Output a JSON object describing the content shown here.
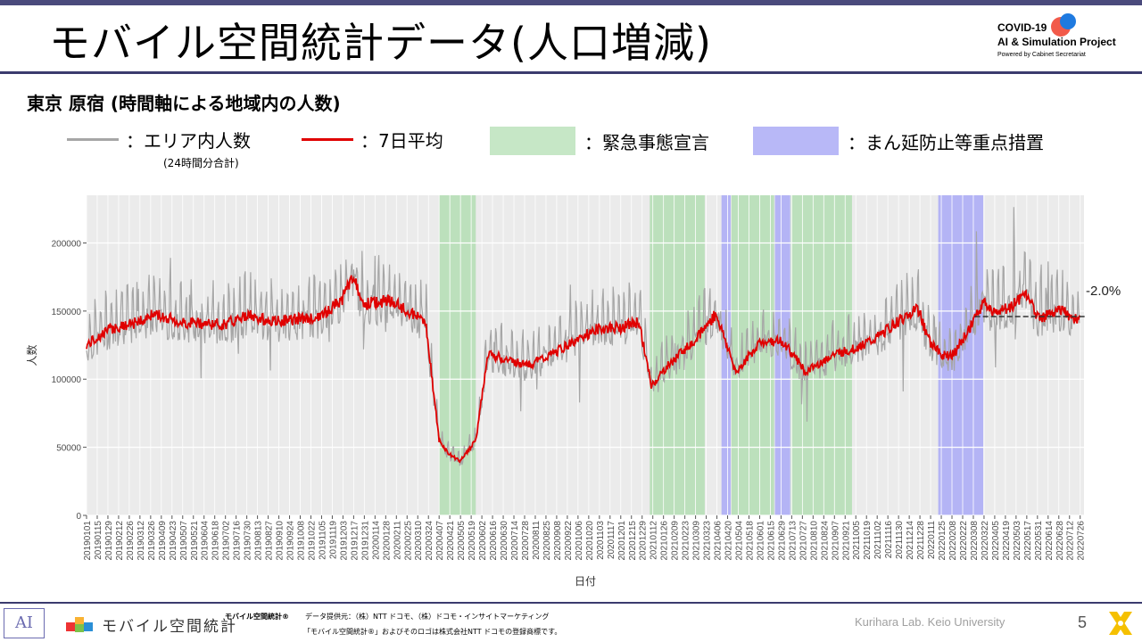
{
  "header": {
    "title": "モバイル空間統計データ(人口増減)",
    "brand_line1": "COVID-19",
    "brand_line2": "AI & Simulation Project",
    "brand_line3": "Powered by Cabinet Secretariat"
  },
  "subtitle": "東京 原宿 (時間軸による地域内の人数)",
  "legend": {
    "gray_label": "：エリア内人数",
    "gray_sub": "(24時間分合計)",
    "red_label": "：7日平均",
    "green_label": "：緊急事態宣言",
    "blue_label": "：まん延防止等重点措置"
  },
  "colors": {
    "raw": "#a6a6a6",
    "avg": "#e00000",
    "emergency": "#b7dfb7",
    "priority": "#b1b1f5",
    "panel": "#ebebeb",
    "accent": "#3b3b6e"
  },
  "chart_data": {
    "type": "line",
    "xlabel": "日付",
    "ylabel": "人数",
    "ylim": [
      0,
      235000
    ],
    "yticks": [
      0,
      50000,
      100000,
      150000,
      200000
    ],
    "ytick_labels": [
      "0",
      "50000",
      "100000",
      "150000",
      "200000"
    ],
    "x_start": "20190101",
    "x_end": "20220731",
    "x_tick_labels": [
      "20190101",
      "20190115",
      "20190129",
      "20190212",
      "20190226",
      "20190312",
      "20190326",
      "20190409",
      "20190423",
      "20190507",
      "20190521",
      "20190604",
      "20190618",
      "20190702",
      "20190716",
      "20190730",
      "20190813",
      "20190827",
      "20190910",
      "20190924",
      "20191008",
      "20191022",
      "20191105",
      "20191119",
      "20191203",
      "20191217",
      "20191231",
      "20200114",
      "20200128",
      "20200211",
      "20200225",
      "20200310",
      "20200324",
      "20200407",
      "20200421",
      "20200505",
      "20200519",
      "20200602",
      "20200616",
      "20200630",
      "20200714",
      "20200728",
      "20200811",
      "20200825",
      "20200908",
      "20200922",
      "20201006",
      "20201020",
      "20201103",
      "20201117",
      "20201201",
      "20201215",
      "20201229",
      "20210112",
      "20210126",
      "20210209",
      "20210223",
      "20210309",
      "20210323",
      "20210406",
      "20210420",
      "20210504",
      "20210518",
      "20210601",
      "20210615",
      "20210629",
      "20210713",
      "20210727",
      "20210810",
      "20210824",
      "20210907",
      "20210921",
      "20211005",
      "20211019",
      "20211102",
      "20211116",
      "20211130",
      "20211214",
      "20211228",
      "20220111",
      "20220125",
      "20220208",
      "20220222",
      "20220308",
      "20220322",
      "20220405",
      "20220419",
      "20220503",
      "20220517",
      "20220531",
      "20220614",
      "20220628",
      "20220712",
      "20220726"
    ],
    "emergency_periods": [
      [
        "20200407",
        "20200525"
      ],
      [
        "20210108",
        "20210321"
      ],
      [
        "20210425",
        "20210620"
      ],
      [
        "20210712",
        "20210930"
      ]
    ],
    "priority_periods": [
      [
        "20210412",
        "20210424"
      ],
      [
        "20210621",
        "20210711"
      ],
      [
        "20220121",
        "20220321"
      ]
    ],
    "series": [
      {
        "name": "7日平均",
        "x": [
          "20190101",
          "20190201",
          "20190301",
          "20190401",
          "20190501",
          "20190601",
          "20190701",
          "20190801",
          "20190901",
          "20191001",
          "20191101",
          "20191201",
          "20191215",
          "20200101",
          "20200201",
          "20200301",
          "20200320",
          "20200407",
          "20200420",
          "20200505",
          "20200525",
          "20200610",
          "20200701",
          "20200801",
          "20200901",
          "20201001",
          "20201101",
          "20201201",
          "20201225",
          "20210110",
          "20210201",
          "20210301",
          "20210320",
          "20210405",
          "20210425",
          "20210501",
          "20210601",
          "20210701",
          "20210801",
          "20210901",
          "20211001",
          "20211101",
          "20211201",
          "20211225",
          "20220110",
          "20220125",
          "20220210",
          "20220301",
          "20220322",
          "20220401",
          "20220501",
          "20220515",
          "20220601",
          "20220701",
          "20220725"
        ],
        "y": [
          125000,
          137000,
          140000,
          148000,
          142000,
          141000,
          140000,
          147000,
          142000,
          144000,
          145000,
          158000,
          175000,
          155000,
          158000,
          148000,
          143000,
          55000,
          45000,
          40000,
          55000,
          118000,
          115000,
          110000,
          118000,
          128000,
          137000,
          138000,
          142000,
          95000,
          110000,
          125000,
          137000,
          148000,
          115000,
          105000,
          127000,
          128000,
          105000,
          117000,
          122000,
          130000,
          143000,
          152000,
          127000,
          118000,
          118000,
          135000,
          158000,
          148000,
          155000,
          165000,
          145000,
          150000,
          143000
        ]
      }
    ],
    "annotation": "-2.0%",
    "reference_value": 146000,
    "reference_start": "20220310"
  },
  "footer": {
    "logo_text": "AI",
    "app_name": "モバイル空間統計",
    "trademark_name": "モバイル空間統計®",
    "provider": "データ提供元：（株）NTT ドコモ、（株）ドコモ・インサイトマーケティング",
    "notice": "「モバイル空間統計®」およびそのロゴは株式会社NTT ドコモの登録商標です。",
    "lab": "Kurihara Lab. Keio University",
    "page_number": "5"
  }
}
